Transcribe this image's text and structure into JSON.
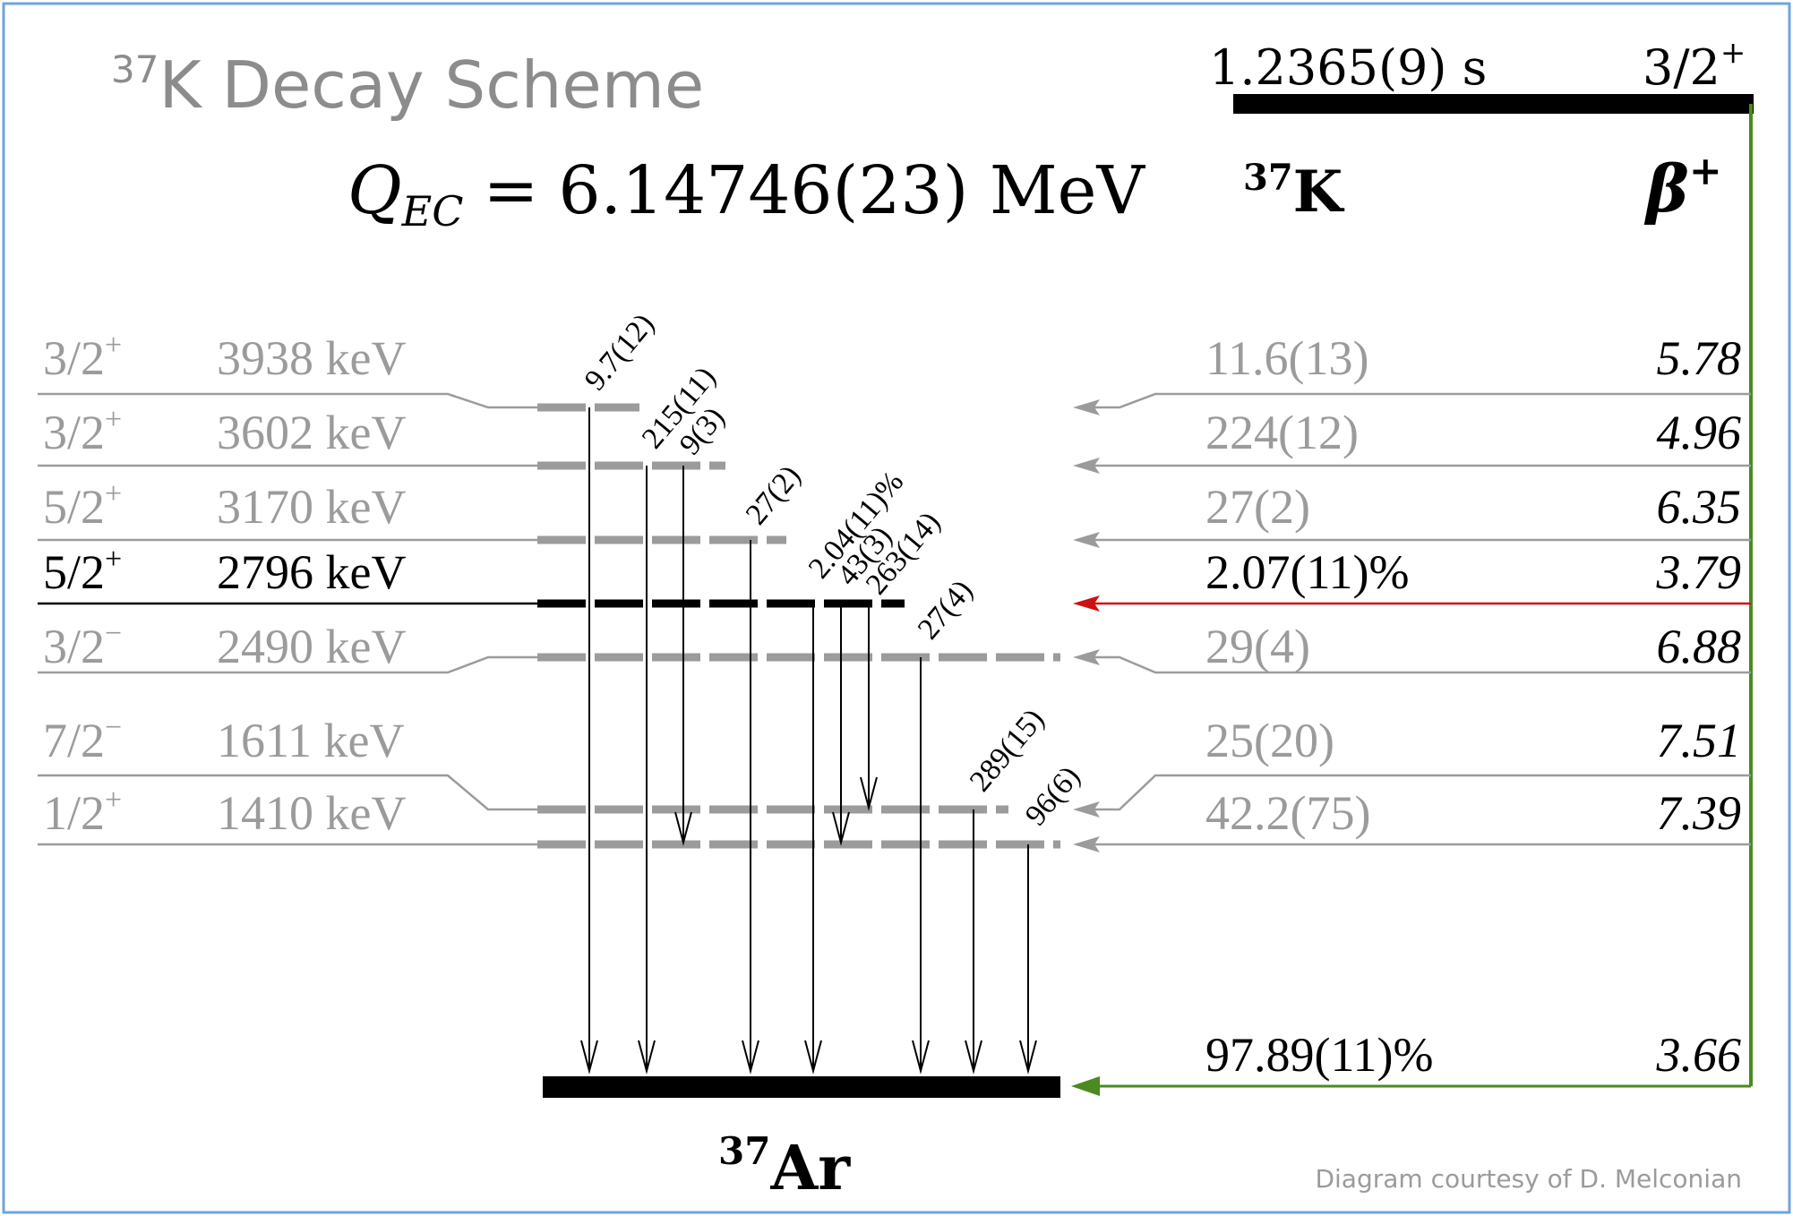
{
  "title": {
    "superscript": "37",
    "text": "K Decay Scheme"
  },
  "q_value": {
    "symbol": "Q",
    "subscript": "EC",
    "equals": "=",
    "value": "6.14746(23) MeV"
  },
  "parent": {
    "halflife": "1.2365(9) s",
    "spin": "3/2",
    "parity": "+",
    "mass": "37",
    "symbol": "K",
    "decay_mode": "β",
    "decay_sign": "+"
  },
  "daughter": {
    "mass": "37",
    "symbol": "Ar"
  },
  "levels": [
    {
      "j": "3/2",
      "p": "+",
      "energy": "3938 keV",
      "feed": "11.6(13)",
      "logft": "5.78",
      "highlight": false
    },
    {
      "j": "3/2",
      "p": "+",
      "energy": "3602 keV",
      "feed": "224(12)",
      "logft": "4.96",
      "highlight": false
    },
    {
      "j": "5/2",
      "p": "+",
      "energy": "3170 keV",
      "feed": "27(2)",
      "logft": "6.35",
      "highlight": false
    },
    {
      "j": "5/2",
      "p": "+",
      "energy": "2796 keV",
      "feed": "2.07(11)%",
      "logft": "3.79",
      "highlight": true
    },
    {
      "j": "3/2",
      "p": "−",
      "energy": "2490 keV",
      "feed": "29(4)",
      "logft": "6.88",
      "highlight": false
    },
    {
      "j": "7/2",
      "p": "−",
      "energy": "1611 keV",
      "feed": "25(20)",
      "logft": "7.51",
      "highlight": false
    },
    {
      "j": "1/2",
      "p": "+",
      "energy": "1410 keV",
      "feed": "42.2(75)",
      "logft": "7.39",
      "highlight": false
    }
  ],
  "ground": {
    "feed": "97.89(11)%",
    "logft": "3.66"
  },
  "gammas": [
    "9.7(12)",
    "215(11)",
    "9(3)",
    "27(2)",
    "2.04(11)%",
    "43(3)",
    "263(14)",
    "27(4)",
    "289(15)",
    "96(6)"
  ],
  "credit": "Diagram courtesy of D. Melconian",
  "colors": {
    "frame": "#6fa4dc",
    "grey": "#9b9b9b",
    "title_grey": "#8c8c8c",
    "black": "#000000",
    "green": "#4a8a1f",
    "red": "#cc1111"
  }
}
